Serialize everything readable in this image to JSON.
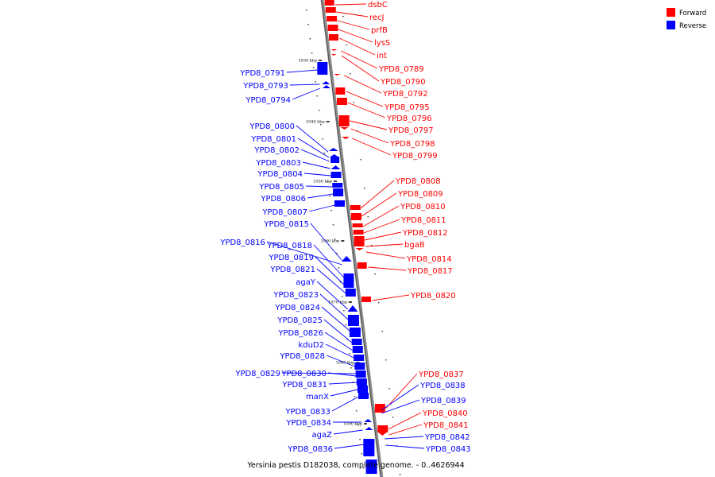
{
  "caption": "Yersinia pestis D182038, complete genome. - 0..4626944",
  "legend": [
    {
      "label": "Forward",
      "color": "#ff0000",
      "strand": "forward"
    },
    {
      "label": "Reverse",
      "color": "#0000ff",
      "strand": "reverse"
    }
  ],
  "ticks": [
    "1030 kbp",
    "1040 kbp",
    "1050 kbp",
    "1060 kbp",
    "1070 kbp",
    "1080 kbp",
    "1090 kbp"
  ],
  "forward_genes": [
    "dsbC",
    "recJ",
    "prfB",
    "lysS",
    "int",
    "YPD8_0789",
    "YPD8_0790",
    "YPD8_0792",
    "YPD8_0795",
    "YPD8_0796",
    "YPD8_0797",
    "YPD8_0798",
    "YPD8_0799",
    "YPD8_0808",
    "YPD8_0809",
    "YPD8_0810",
    "YPD8_0811",
    "YPD8_0812",
    "bgaB",
    "YPD8_0814",
    "YPD8_0817",
    "YPD8_0820",
    "YPD8_0837",
    "YPD8_0840",
    "YPD8_0841"
  ],
  "reverse_genes_right": [
    "YPD8_0838",
    "YPD8_0839",
    "YPD8_0842",
    "YPD8_0843"
  ],
  "reverse_genes_left": [
    "YPD8_0791",
    "YPD8_0793",
    "YPD8_0794",
    "YPD8_0800",
    "YPD8_0801",
    "YPD8_0802",
    "YPD8_0803",
    "YPD8_0804",
    "YPD8_0805",
    "YPD8_0806",
    "YPD8_0807",
    "YPD8_0815",
    "YPD8_0816",
    "YPD8_0818",
    "YPD8_0819",
    "YPD8_0821",
    "agaY",
    "YPD8_0823",
    "YPD8_0824",
    "YPD8_0825",
    "YPD8_0826",
    "kduD2",
    "YPD8_0828",
    "YPD8_0829",
    "YPD8_0830",
    "YPD8_0831",
    "manX",
    "YPD8_0833",
    "YPD8_0834",
    "agaZ",
    "YPD8_0836"
  ]
}
